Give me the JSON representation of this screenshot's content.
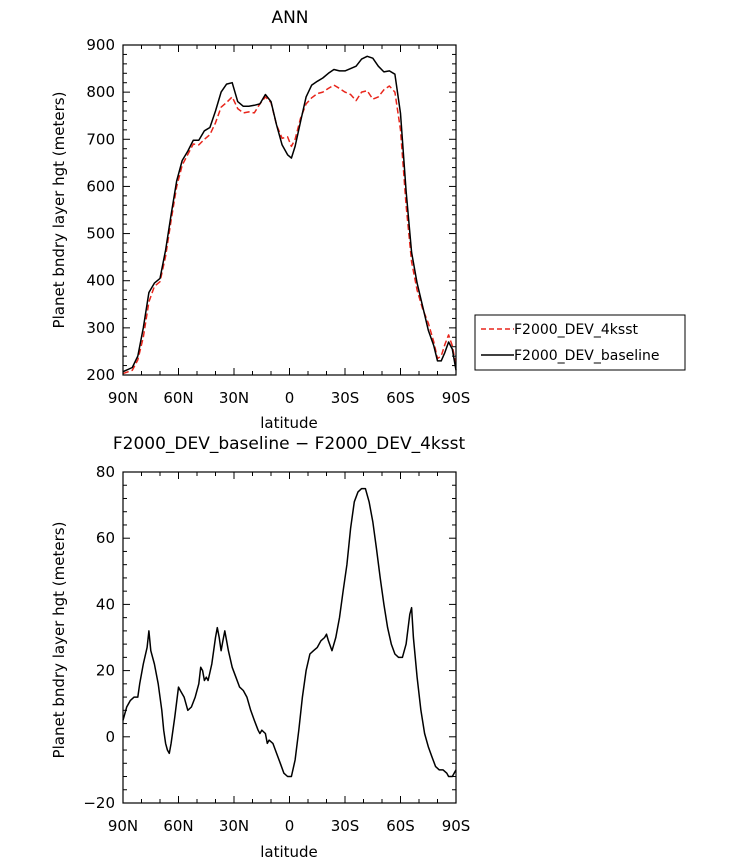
{
  "chart_data": [
    {
      "type": "line",
      "title": "ANN",
      "xlabel": "latitude",
      "ylabel": "Planet bndry layer hgt (meters)",
      "xlim": [
        90,
        -90
      ],
      "ylim": [
        200,
        900
      ],
      "xticks": [
        90,
        60,
        30,
        0,
        -30,
        -60,
        -90
      ],
      "xtick_labels": [
        "90N",
        "60N",
        "30N",
        "0",
        "30S",
        "60S",
        "90S"
      ],
      "yticks": [
        200,
        300,
        400,
        500,
        600,
        700,
        800,
        900
      ],
      "ytick_labels": [
        "200",
        "300",
        "400",
        "500",
        "600",
        "700",
        "800",
        "900"
      ],
      "legend_position": "right",
      "grid": false,
      "series": [
        {
          "name": "F2000_DEV_4ksst",
          "color": "#e8251b",
          "dash": "dashed",
          "points": [
            [
              90,
              203
            ],
            [
              85,
              210
            ],
            [
              82,
              232
            ],
            [
              79,
              280
            ],
            [
              76,
              355
            ],
            [
              73,
              388
            ],
            [
              70,
              398
            ],
            [
              67,
              452
            ],
            [
              64,
              528
            ],
            [
              61,
              600
            ],
            [
              58,
              645
            ],
            [
              55,
              668
            ],
            [
              52,
              690
            ],
            [
              49,
              688
            ],
            [
              46,
              700
            ],
            [
              43,
              710
            ],
            [
              40,
              735
            ],
            [
              37,
              768
            ],
            [
              34,
              778
            ],
            [
              31,
              790
            ],
            [
              28,
              765
            ],
            [
              25,
              756
            ],
            [
              22,
              758
            ],
            [
              19,
              756
            ],
            [
              16,
              775
            ],
            [
              13,
              790
            ],
            [
              10,
              778
            ],
            [
              7,
              730
            ],
            [
              4,
              702
            ],
            [
              1,
              705
            ],
            [
              -1,
              685
            ],
            [
              -3,
              700
            ],
            [
              -6,
              745
            ],
            [
              -9,
              775
            ],
            [
              -12,
              788
            ],
            [
              -15,
              797
            ],
            [
              -18,
              800
            ],
            [
              -21,
              808
            ],
            [
              -24,
              815
            ],
            [
              -27,
              808
            ],
            [
              -30,
              800
            ],
            [
              -33,
              795
            ],
            [
              -36,
              782
            ],
            [
              -39,
              800
            ],
            [
              -42,
              803
            ],
            [
              -45,
              785
            ],
            [
              -48,
              790
            ],
            [
              -51,
              805
            ],
            [
              -54,
              813
            ],
            [
              -57,
              800
            ],
            [
              -60,
              720
            ],
            [
              -63,
              560
            ],
            [
              -66,
              440
            ],
            [
              -69,
              380
            ],
            [
              -72,
              340
            ],
            [
              -75,
              310
            ],
            [
              -78,
              270
            ],
            [
              -80,
              235
            ],
            [
              -82,
              240
            ],
            [
              -84,
              265
            ],
            [
              -86,
              285
            ],
            [
              -88,
              262
            ],
            [
              -90,
              220
            ]
          ]
        },
        {
          "name": "F2000_DEV_baseline",
          "color": "#000000",
          "dash": "solid",
          "points": [
            [
              90,
              207
            ],
            [
              85,
              216
            ],
            [
              82,
              240
            ],
            [
              79,
              300
            ],
            [
              76,
              375
            ],
            [
              73,
              395
            ],
            [
              70,
              405
            ],
            [
              67,
              465
            ],
            [
              64,
              540
            ],
            [
              61,
              612
            ],
            [
              58,
              655
            ],
            [
              55,
              675
            ],
            [
              52,
              698
            ],
            [
              49,
              698
            ],
            [
              46,
              718
            ],
            [
              43,
              725
            ],
            [
              40,
              760
            ],
            [
              37,
              800
            ],
            [
              34,
              817
            ],
            [
              31,
              820
            ],
            [
              28,
              780
            ],
            [
              25,
              770
            ],
            [
              22,
              770
            ],
            [
              19,
              772
            ],
            [
              16,
              775
            ],
            [
              13,
              795
            ],
            [
              10,
              780
            ],
            [
              7,
              730
            ],
            [
              4,
              688
            ],
            [
              1,
              667
            ],
            [
              -1,
              660
            ],
            [
              -3,
              685
            ],
            [
              -6,
              738
            ],
            [
              -9,
              790
            ],
            [
              -12,
              815
            ],
            [
              -15,
              823
            ],
            [
              -18,
              830
            ],
            [
              -21,
              840
            ],
            [
              -24,
              848
            ],
            [
              -27,
              845
            ],
            [
              -30,
              845
            ],
            [
              -33,
              850
            ],
            [
              -36,
              855
            ],
            [
              -39,
              870
            ],
            [
              -42,
              876
            ],
            [
              -45,
              872
            ],
            [
              -48,
              855
            ],
            [
              -51,
              843
            ],
            [
              -54,
              845
            ],
            [
              -57,
              838
            ],
            [
              -60,
              755
            ],
            [
              -63,
              590
            ],
            [
              -66,
              460
            ],
            [
              -69,
              395
            ],
            [
              -72,
              345
            ],
            [
              -75,
              295
            ],
            [
              -78,
              262
            ],
            [
              -80,
              230
            ],
            [
              -82,
              230
            ],
            [
              -84,
              248
            ],
            [
              -86,
              270
            ],
            [
              -88,
              255
            ],
            [
              -90,
              210
            ]
          ]
        }
      ]
    },
    {
      "type": "line",
      "title": "F2000_DEV_baseline − F2000_DEV_4ksst",
      "xlabel": "latitude",
      "ylabel": "Planet bndry layer hgt (meters)",
      "xlim": [
        90,
        -90
      ],
      "ylim": [
        -20,
        80
      ],
      "xticks": [
        90,
        60,
        30,
        0,
        -30,
        -60,
        -90
      ],
      "xtick_labels": [
        "90N",
        "60N",
        "30N",
        "0",
        "30S",
        "60S",
        "90S"
      ],
      "yticks": [
        -20,
        0,
        20,
        40,
        60,
        80
      ],
      "ytick_labels": [
        "−20",
        "0",
        "20",
        "40",
        "60",
        "80"
      ],
      "grid": false,
      "series": [
        {
          "color": "#000000",
          "dash": "solid",
          "points": [
            [
              90,
              5
            ],
            [
              88,
              9
            ],
            [
              86,
              11
            ],
            [
              84,
              12
            ],
            [
              82,
              12
            ],
            [
              81,
              16
            ],
            [
              79,
              22
            ],
            [
              77,
              27
            ],
            [
              76,
              32
            ],
            [
              75,
              26
            ],
            [
              73,
              22
            ],
            [
              71,
              16
            ],
            [
              69,
              8
            ],
            [
              68,
              2
            ],
            [
              67,
              -2
            ],
            [
              66,
              -4
            ],
            [
              65,
              -5
            ],
            [
              64,
              -2
            ],
            [
              62,
              6
            ],
            [
              60,
              15
            ],
            [
              59,
              14
            ],
            [
              57,
              12
            ],
            [
              55,
              8
            ],
            [
              53,
              9
            ],
            [
              51,
              12
            ],
            [
              49,
              16
            ],
            [
              48,
              21
            ],
            [
              47,
              20
            ],
            [
              46,
              17
            ],
            [
              45,
              18
            ],
            [
              44,
              17
            ],
            [
              42,
              22
            ],
            [
              40,
              30
            ],
            [
              39,
              33
            ],
            [
              38,
              30
            ],
            [
              37,
              26
            ],
            [
              36,
              29
            ],
            [
              35,
              32
            ],
            [
              34,
              29
            ],
            [
              33,
              26
            ],
            [
              31,
              21
            ],
            [
              29,
              18
            ],
            [
              27,
              15
            ],
            [
              25,
              14
            ],
            [
              23,
              12
            ],
            [
              21,
              8
            ],
            [
              19,
              5
            ],
            [
              17,
              2
            ],
            [
              16,
              1
            ],
            [
              15,
              2
            ],
            [
              13,
              1
            ],
            [
              12,
              -2
            ],
            [
              11,
              -1
            ],
            [
              9,
              -2
            ],
            [
              7,
              -5
            ],
            [
              5,
              -8
            ],
            [
              3,
              -11
            ],
            [
              1,
              -12
            ],
            [
              -1,
              -12
            ],
            [
              -3,
              -7
            ],
            [
              -5,
              2
            ],
            [
              -7,
              12
            ],
            [
              -9,
              20
            ],
            [
              -11,
              25
            ],
            [
              -13,
              26
            ],
            [
              -15,
              27
            ],
            [
              -17,
              29
            ],
            [
              -19,
              30
            ],
            [
              -20,
              31
            ],
            [
              -21,
              29
            ],
            [
              -23,
              26
            ],
            [
              -25,
              30
            ],
            [
              -27,
              36
            ],
            [
              -29,
              44
            ],
            [
              -31,
              52
            ],
            [
              -33,
              63
            ],
            [
              -35,
              71
            ],
            [
              -37,
              74
            ],
            [
              -39,
              75
            ],
            [
              -41,
              75
            ],
            [
              -43,
              71
            ],
            [
              -45,
              65
            ],
            [
              -47,
              57
            ],
            [
              -49,
              48
            ],
            [
              -51,
              40
            ],
            [
              -53,
              33
            ],
            [
              -55,
              28
            ],
            [
              -57,
              25
            ],
            [
              -59,
              24
            ],
            [
              -61,
              24
            ],
            [
              -63,
              28
            ],
            [
              -65,
              37
            ],
            [
              -66,
              39
            ],
            [
              -67,
              30
            ],
            [
              -69,
              18
            ],
            [
              -71,
              8
            ],
            [
              -73,
              1
            ],
            [
              -75,
              -3
            ],
            [
              -77,
              -6
            ],
            [
              -79,
              -9
            ],
            [
              -81,
              -10
            ],
            [
              -83,
              -10
            ],
            [
              -85,
              -11
            ],
            [
              -86,
              -12
            ],
            [
              -88,
              -12
            ],
            [
              -90,
              -10
            ]
          ]
        }
      ]
    }
  ]
}
